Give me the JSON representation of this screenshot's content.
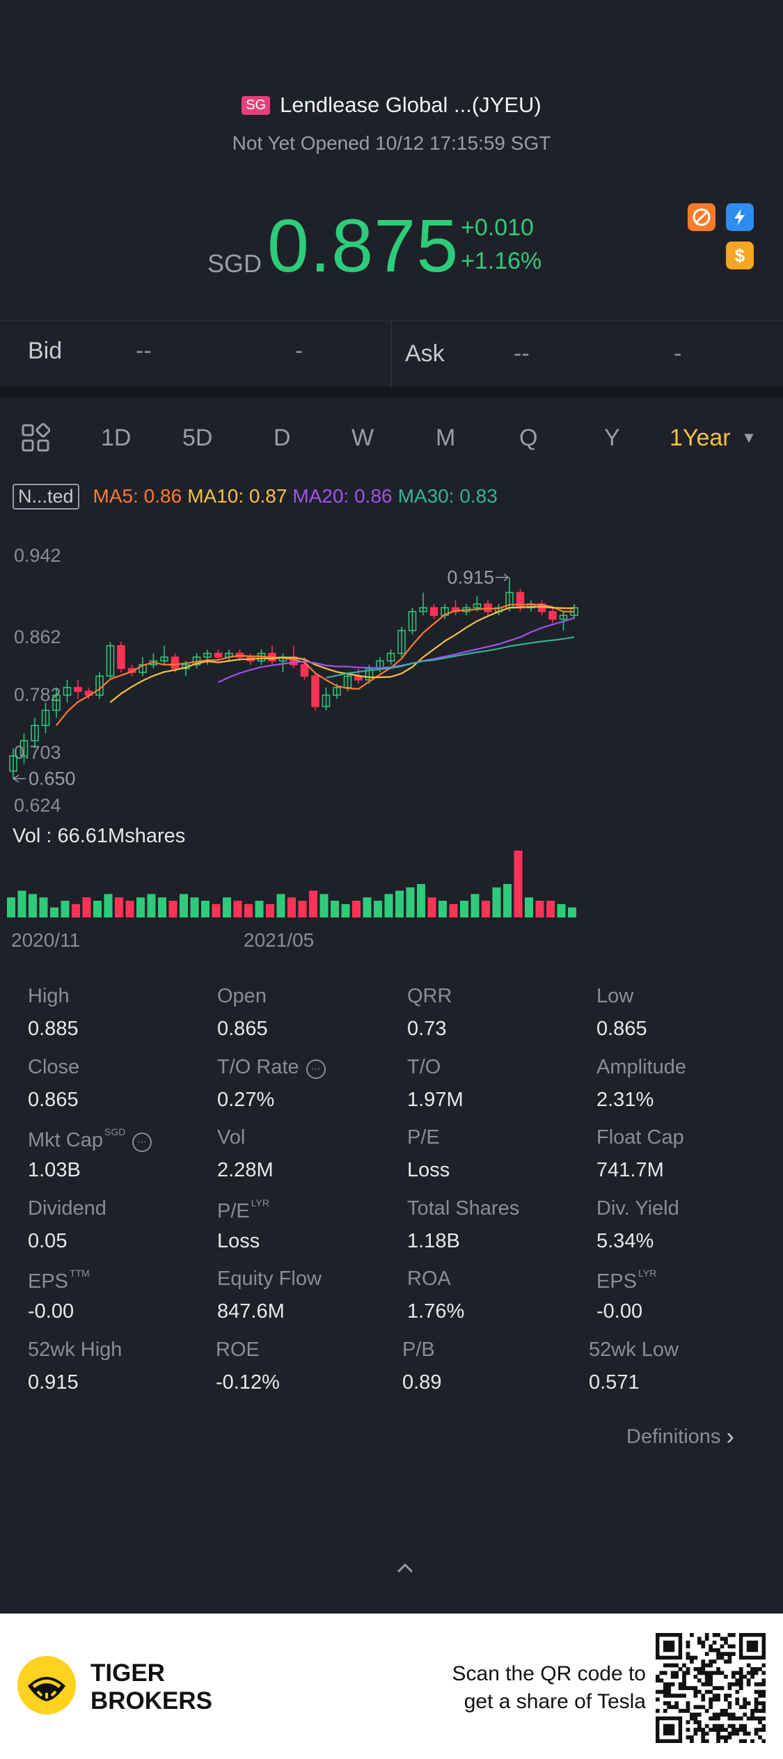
{
  "header": {
    "market_badge": "SG",
    "title": "Lendlease Global ...(JYEU)",
    "status": "Not Yet Opened 10/12 17:15:59 SGT",
    "currency": "SGD",
    "price": "0.875",
    "change": "+0.010",
    "change_pct": "+1.16%"
  },
  "quote": {
    "bid_label": "Bid",
    "bid_price": "--",
    "bid_size": "-",
    "ask_label": "Ask",
    "ask_price": "--",
    "ask_size": "-"
  },
  "period_tabs": [
    "1D",
    "5D",
    "D",
    "W",
    "M",
    "Q",
    "Y",
    "1Year"
  ],
  "active_tab": "1Year",
  "indicators": {
    "mode_label": "N...ted",
    "ma5": "MA5: 0.86",
    "ma10": "MA10: 0.87",
    "ma20": "MA20: 0.86",
    "ma30": "MA30: 0.83",
    "colors": {
      "ma5": "#ff7a33",
      "ma10": "#f5c242",
      "ma20": "#a052f0",
      "ma30": "#2fb59a",
      "up": "#2ecc7a",
      "down": "#ff3355"
    }
  },
  "chart_data": {
    "type": "candlestick",
    "ytick_labels": [
      "0.942",
      "0.862",
      "0.782",
      "0.703",
      "0.624"
    ],
    "annotations": {
      "high": "0.915",
      "low": "0.650"
    },
    "x_labels": [
      "2020/11",
      "2021/05"
    ],
    "volume_label": "Vol  : 66.61Mshares",
    "candles": [
      {
        "o": 0.66,
        "h": 0.69,
        "l": 0.65,
        "c": 0.68
      },
      {
        "o": 0.68,
        "h": 0.71,
        "l": 0.67,
        "c": 0.7
      },
      {
        "o": 0.7,
        "h": 0.73,
        "l": 0.69,
        "c": 0.72
      },
      {
        "o": 0.72,
        "h": 0.75,
        "l": 0.71,
        "c": 0.74
      },
      {
        "o": 0.74,
        "h": 0.77,
        "l": 0.73,
        "c": 0.76
      },
      {
        "o": 0.76,
        "h": 0.78,
        "l": 0.75,
        "c": 0.77
      },
      {
        "o": 0.77,
        "h": 0.78,
        "l": 0.755,
        "c": 0.765
      },
      {
        "o": 0.765,
        "h": 0.77,
        "l": 0.755,
        "c": 0.76
      },
      {
        "o": 0.76,
        "h": 0.79,
        "l": 0.755,
        "c": 0.785
      },
      {
        "o": 0.785,
        "h": 0.83,
        "l": 0.78,
        "c": 0.825
      },
      {
        "o": 0.825,
        "h": 0.83,
        "l": 0.79,
        "c": 0.795
      },
      {
        "o": 0.795,
        "h": 0.8,
        "l": 0.785,
        "c": 0.79
      },
      {
        "o": 0.79,
        "h": 0.81,
        "l": 0.785,
        "c": 0.8
      },
      {
        "o": 0.8,
        "h": 0.815,
        "l": 0.795,
        "c": 0.805
      },
      {
        "o": 0.805,
        "h": 0.825,
        "l": 0.8,
        "c": 0.81
      },
      {
        "o": 0.81,
        "h": 0.815,
        "l": 0.79,
        "c": 0.795
      },
      {
        "o": 0.795,
        "h": 0.805,
        "l": 0.785,
        "c": 0.8
      },
      {
        "o": 0.8,
        "h": 0.815,
        "l": 0.795,
        "c": 0.81
      },
      {
        "o": 0.81,
        "h": 0.82,
        "l": 0.8,
        "c": 0.815
      },
      {
        "o": 0.815,
        "h": 0.82,
        "l": 0.805,
        "c": 0.81
      },
      {
        "o": 0.81,
        "h": 0.82,
        "l": 0.805,
        "c": 0.815
      },
      {
        "o": 0.815,
        "h": 0.82,
        "l": 0.805,
        "c": 0.81
      },
      {
        "o": 0.81,
        "h": 0.815,
        "l": 0.8,
        "c": 0.805
      },
      {
        "o": 0.805,
        "h": 0.82,
        "l": 0.8,
        "c": 0.815
      },
      {
        "o": 0.815,
        "h": 0.825,
        "l": 0.8,
        "c": 0.805
      },
      {
        "o": 0.805,
        "h": 0.815,
        "l": 0.79,
        "c": 0.81
      },
      {
        "o": 0.81,
        "h": 0.825,
        "l": 0.795,
        "c": 0.8
      },
      {
        "o": 0.8,
        "h": 0.81,
        "l": 0.78,
        "c": 0.785
      },
      {
        "o": 0.785,
        "h": 0.79,
        "l": 0.74,
        "c": 0.745
      },
      {
        "o": 0.745,
        "h": 0.77,
        "l": 0.74,
        "c": 0.76
      },
      {
        "o": 0.76,
        "h": 0.775,
        "l": 0.755,
        "c": 0.77
      },
      {
        "o": 0.77,
        "h": 0.79,
        "l": 0.765,
        "c": 0.785
      },
      {
        "o": 0.785,
        "h": 0.795,
        "l": 0.775,
        "c": 0.78
      },
      {
        "o": 0.78,
        "h": 0.8,
        "l": 0.775,
        "c": 0.795
      },
      {
        "o": 0.795,
        "h": 0.81,
        "l": 0.79,
        "c": 0.805
      },
      {
        "o": 0.805,
        "h": 0.82,
        "l": 0.8,
        "c": 0.815
      },
      {
        "o": 0.815,
        "h": 0.85,
        "l": 0.81,
        "c": 0.845
      },
      {
        "o": 0.845,
        "h": 0.875,
        "l": 0.84,
        "c": 0.87
      },
      {
        "o": 0.87,
        "h": 0.895,
        "l": 0.865,
        "c": 0.875
      },
      {
        "o": 0.875,
        "h": 0.88,
        "l": 0.86,
        "c": 0.865
      },
      {
        "o": 0.865,
        "h": 0.88,
        "l": 0.86,
        "c": 0.875
      },
      {
        "o": 0.875,
        "h": 0.885,
        "l": 0.865,
        "c": 0.87
      },
      {
        "o": 0.87,
        "h": 0.88,
        "l": 0.865,
        "c": 0.875
      },
      {
        "o": 0.875,
        "h": 0.89,
        "l": 0.87,
        "c": 0.88
      },
      {
        "o": 0.88,
        "h": 0.885,
        "l": 0.865,
        "c": 0.87
      },
      {
        "o": 0.87,
        "h": 0.88,
        "l": 0.865,
        "c": 0.875
      },
      {
        "o": 0.875,
        "h": 0.915,
        "l": 0.87,
        "c": 0.895
      },
      {
        "o": 0.895,
        "h": 0.9,
        "l": 0.87,
        "c": 0.875
      },
      {
        "o": 0.875,
        "h": 0.885,
        "l": 0.87,
        "c": 0.88
      },
      {
        "o": 0.88,
        "h": 0.885,
        "l": 0.865,
        "c": 0.87
      },
      {
        "o": 0.87,
        "h": 0.875,
        "l": 0.855,
        "c": 0.86
      },
      {
        "o": 0.86,
        "h": 0.87,
        "l": 0.845,
        "c": 0.865
      },
      {
        "o": 0.865,
        "h": 0.88,
        "l": 0.86,
        "c": 0.875
      }
    ],
    "volumes": [
      6,
      8,
      7,
      6,
      3,
      5,
      4,
      6,
      5,
      7,
      6,
      5,
      6,
      7,
      6,
      5,
      7,
      6,
      5,
      4,
      6,
      5,
      4,
      5,
      4,
      7,
      6,
      5,
      8,
      7,
      5,
      4,
      5,
      6,
      5,
      7,
      8,
      9,
      10,
      6,
      5,
      4,
      5,
      7,
      5,
      9,
      10,
      20,
      6,
      5,
      5,
      4,
      3
    ]
  },
  "stats": [
    {
      "label": "High",
      "value": "0.885"
    },
    {
      "label": "Open",
      "value": "0.865"
    },
    {
      "label": "QRR",
      "value": "0.73"
    },
    {
      "label": "Low",
      "value": "0.865"
    },
    {
      "label": "Close",
      "value": "0.865"
    },
    {
      "label": "T/O Rate",
      "value": "0.27%"
    },
    {
      "label": "T/O",
      "value": "1.97M"
    },
    {
      "label": "Amplitude",
      "value": "2.31%"
    },
    {
      "label": "Mkt Cap",
      "value": "1.03B",
      "sup": "SGD"
    },
    {
      "label": "Vol",
      "value": "2.28M"
    },
    {
      "label": "P/E",
      "value": "Loss"
    },
    {
      "label": "Float Cap",
      "value": "741.7M"
    },
    {
      "label": "Dividend",
      "value": "0.05"
    },
    {
      "label": "P/E",
      "value": "Loss",
      "sup": "LYR"
    },
    {
      "label": "Total Shares",
      "value": "1.18B"
    },
    {
      "label": "Div. Yield",
      "value": "5.34%"
    },
    {
      "label": "EPS",
      "value": "-0.00",
      "sup": "TTM"
    },
    {
      "label": "Equity Flow",
      "value": "847.6M"
    },
    {
      "label": "ROA",
      "value": "1.76%"
    },
    {
      "label": "EPS",
      "value": "-0.00",
      "sup": "LYR"
    },
    {
      "label": "52wk High",
      "value": "0.915"
    },
    {
      "label": "ROE",
      "value": "-0.12%"
    },
    {
      "label": "P/B",
      "value": "0.89"
    },
    {
      "label": "52wk Low",
      "value": "0.571"
    }
  ],
  "definitions_link": "Definitions",
  "footer": {
    "brand_line1": "TIGER",
    "brand_line2": "BROKERS",
    "promo_line1": "Scan the QR code to",
    "promo_line2": "get a share of Tesla"
  }
}
